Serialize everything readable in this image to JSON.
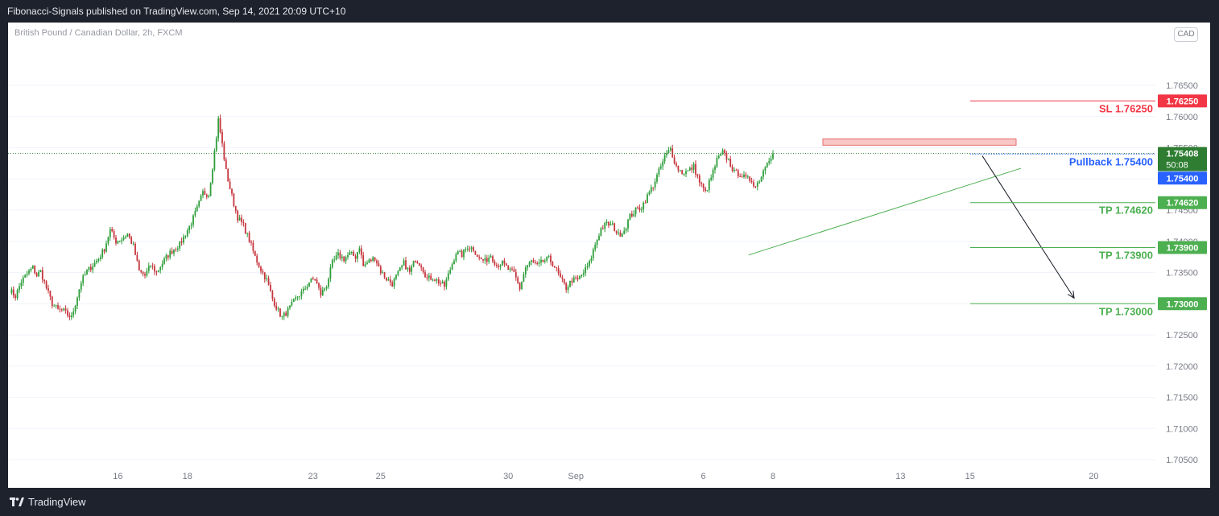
{
  "header": {
    "text": "Fibonacci-Signals published on TradingView.com, Sep 14, 2021 20:09 UTC+10"
  },
  "footer": {
    "brand": "TradingView"
  },
  "chart_data": {
    "type": "candlestick",
    "title": "British Pound / Canadian Dollar, 2h, FXCM",
    "currency": "CAD",
    "ylim": [
      1.703,
      1.7685
    ],
    "y_ticks": [
      "1.76500",
      "1.76000",
      "1.75500",
      "1.75000",
      "1.74500",
      "1.74000",
      "1.73500",
      "1.73000",
      "1.72500",
      "1.72000",
      "1.71500",
      "1.71000",
      "1.70500"
    ],
    "x_ticks": [
      "16",
      "18",
      "23",
      "25",
      "30",
      "Sep",
      "6",
      "8",
      "13",
      "15",
      "20"
    ],
    "price_path": [
      [
        0,
        1.7322
      ],
      [
        3,
        1.7312
      ],
      [
        6,
        1.7335
      ],
      [
        9,
        1.7348
      ],
      [
        12,
        1.7358
      ],
      [
        14,
        1.7345
      ],
      [
        16,
        1.7352
      ],
      [
        19,
        1.7325
      ],
      [
        22,
        1.73
      ],
      [
        25,
        1.729
      ],
      [
        28,
        1.7288
      ],
      [
        30,
        1.7282
      ],
      [
        32,
        1.7278
      ],
      [
        34,
        1.73
      ],
      [
        37,
        1.7335
      ],
      [
        40,
        1.7352
      ],
      [
        43,
        1.7362
      ],
      [
        46,
        1.7372
      ],
      [
        49,
        1.7388
      ],
      [
        52,
        1.7418
      ],
      [
        55,
        1.74
      ],
      [
        58,
        1.7404
      ],
      [
        61,
        1.7412
      ],
      [
        64,
        1.7392
      ],
      [
        67,
        1.7352
      ],
      [
        70,
        1.7345
      ],
      [
        73,
        1.7362
      ],
      [
        76,
        1.735
      ],
      [
        79,
        1.7365
      ],
      [
        82,
        1.7378
      ],
      [
        85,
        1.7388
      ],
      [
        88,
        1.7395
      ],
      [
        91,
        1.7412
      ],
      [
        94,
        1.743
      ],
      [
        97,
        1.7452
      ],
      [
        100,
        1.7478
      ],
      [
        103,
        1.7475
      ],
      [
        105,
        1.752
      ],
      [
        107,
        1.7568
      ],
      [
        108,
        1.7595
      ],
      [
        110,
        1.7555
      ],
      [
        112,
        1.7512
      ],
      [
        114,
        1.7485
      ],
      [
        116,
        1.746
      ],
      [
        118,
        1.7438
      ],
      [
        121,
        1.7425
      ],
      [
        124,
        1.7402
      ],
      [
        127,
        1.7375
      ],
      [
        130,
        1.7355
      ],
      [
        133,
        1.7338
      ],
      [
        136,
        1.7308
      ],
      [
        139,
        1.7288
      ],
      [
        141,
        1.7278
      ],
      [
        143,
        1.7285
      ],
      [
        146,
        1.7298
      ],
      [
        149,
        1.7312
      ],
      [
        152,
        1.732
      ],
      [
        155,
        1.7335
      ],
      [
        158,
        1.734
      ],
      [
        161,
        1.7315
      ],
      [
        164,
        1.733
      ],
      [
        167,
        1.7365
      ],
      [
        170,
        1.7378
      ],
      [
        173,
        1.7372
      ],
      [
        176,
        1.738
      ],
      [
        179,
        1.7375
      ],
      [
        181,
        1.7392
      ],
      [
        183,
        1.736
      ],
      [
        186,
        1.7368
      ],
      [
        189,
        1.7374
      ],
      [
        192,
        1.7352
      ],
      [
        195,
        1.734
      ],
      [
        198,
        1.7332
      ],
      [
        201,
        1.7348
      ],
      [
        204,
        1.7365
      ],
      [
        207,
        1.735
      ],
      [
        210,
        1.7372
      ],
      [
        213,
        1.7362
      ],
      [
        216,
        1.734
      ],
      [
        219,
        1.7342
      ],
      [
        222,
        1.7335
      ],
      [
        225,
        1.7328
      ],
      [
        228,
        1.7355
      ],
      [
        231,
        1.7382
      ],
      [
        234,
        1.7378
      ],
      [
        237,
        1.7392
      ],
      [
        240,
        1.7388
      ],
      [
        243,
        1.7372
      ],
      [
        246,
        1.7368
      ],
      [
        249,
        1.7378
      ],
      [
        252,
        1.7362
      ],
      [
        255,
        1.7365
      ],
      [
        258,
        1.7355
      ],
      [
        261,
        1.7348
      ],
      [
        264,
        1.7325
      ],
      [
        267,
        1.7358
      ],
      [
        270,
        1.7368
      ],
      [
        273,
        1.736
      ],
      [
        276,
        1.7368
      ],
      [
        279,
        1.7372
      ],
      [
        282,
        1.736
      ],
      [
        285,
        1.734
      ],
      [
        288,
        1.7325
      ],
      [
        291,
        1.7338
      ],
      [
        294,
        1.7338
      ],
      [
        297,
        1.735
      ],
      [
        300,
        1.7365
      ],
      [
        303,
        1.7395
      ],
      [
        306,
        1.742
      ],
      [
        309,
        1.7428
      ],
      [
        312,
        1.7425
      ],
      [
        315,
        1.741
      ],
      [
        318,
        1.7418
      ],
      [
        321,
        1.744
      ],
      [
        324,
        1.745
      ],
      [
        327,
        1.7455
      ],
      [
        330,
        1.7472
      ],
      [
        333,
        1.749
      ],
      [
        336,
        1.7512
      ],
      [
        339,
        1.7535
      ],
      [
        342,
        1.7548
      ],
      [
        345,
        1.752
      ],
      [
        348,
        1.751
      ],
      [
        351,
        1.7512
      ],
      [
        354,
        1.752
      ],
      [
        357,
        1.7495
      ],
      [
        360,
        1.7478
      ],
      [
        363,
        1.7502
      ],
      [
        366,
        1.753
      ],
      [
        369,
        1.7542
      ],
      [
        372,
        1.753
      ],
      [
        375,
        1.751
      ],
      [
        378,
        1.7508
      ],
      [
        381,
        1.75
      ],
      [
        384,
        1.7498
      ],
      [
        386,
        1.7488
      ],
      [
        389,
        1.7505
      ],
      [
        392,
        1.753
      ],
      [
        395,
        1.754
      ]
    ],
    "resistance_zone": {
      "from": 1.7554,
      "to": 1.7564
    },
    "trendline": {
      "from": {
        "bar": 304,
        "price": 1.7378
      },
      "to": {
        "bar": 407,
        "price": 1.7517
      }
    },
    "arrow": {
      "from": {
        "bar": 396,
        "price": 1.7537
      },
      "to": {
        "bar": 434,
        "price": 1.7309
      }
    },
    "last_price": {
      "price": 1.75408,
      "label": "1.75408",
      "countdown": "50:08"
    },
    "levels": [
      {
        "name": "SL",
        "price": 1.7625,
        "color": "#f23645",
        "text": "SL 1.76250",
        "tag": "1.76250"
      },
      {
        "name": "Pullback",
        "price": 1.754,
        "color": "#2962ff",
        "text": "Pullback 1.75400",
        "tag": "1.75400",
        "dashed": true
      },
      {
        "name": "TP",
        "price": 1.7462,
        "color": "#4caf50",
        "text": "TP 1.74620",
        "tag": "1.74620"
      },
      {
        "name": "TP",
        "price": 1.739,
        "color": "#4caf50",
        "text": "TP 1.73900",
        "tag": "1.73900"
      },
      {
        "name": "TP",
        "price": 1.73,
        "color": "#4caf50",
        "text": "TP 1.73000",
        "tag": "1.73000"
      }
    ],
    "colors": {
      "up": "#26a69a",
      "down": "#ef5350",
      "up_candle": "#2e9e3a",
      "down_candle": "#c6343c",
      "grid": "#f0f3fa",
      "axis_text": "#787b86",
      "trendline": "#4caf50",
      "zone_fill": "#f9c6c6",
      "zone_stroke": "#e56b6b"
    }
  }
}
